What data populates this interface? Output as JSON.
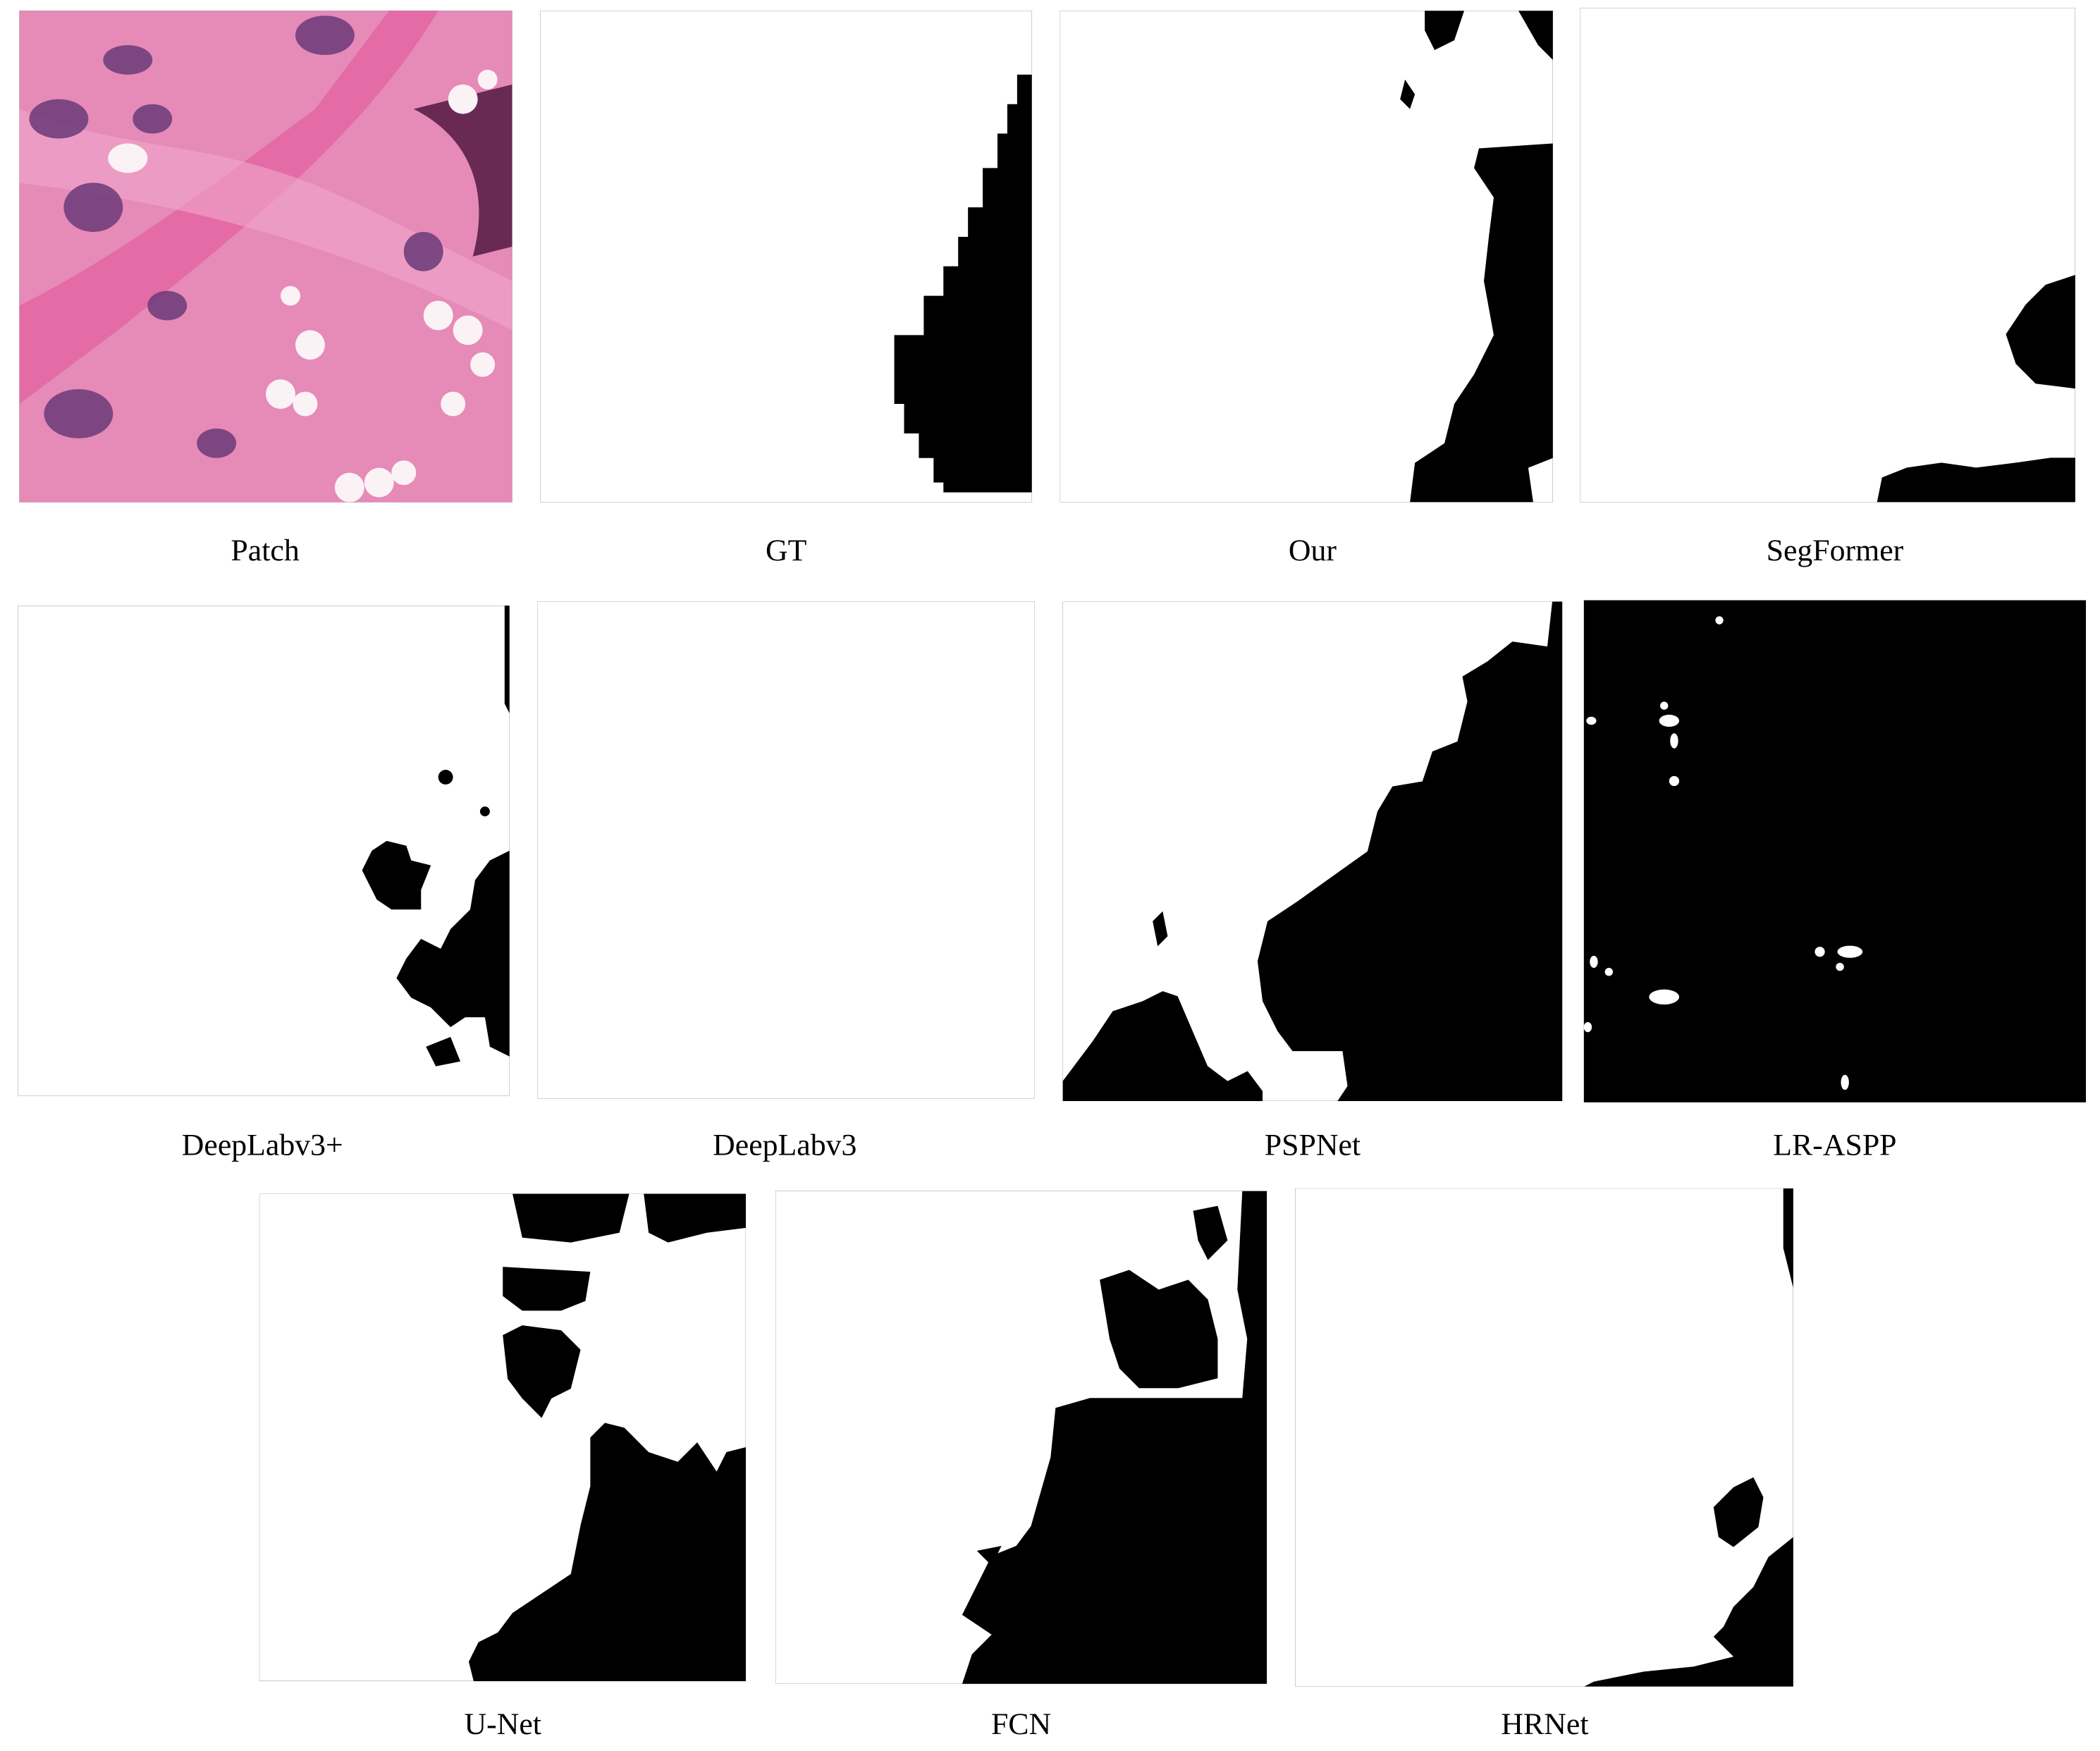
{
  "labels": [
    "Patch",
    "GT",
    "Our",
    "SegFormer",
    "DeepLabv3+",
    "DeepLabv3",
    "PSPNet",
    "LR-ASPP",
    "U-Net",
    "FCN",
    "HRNet"
  ]
}
